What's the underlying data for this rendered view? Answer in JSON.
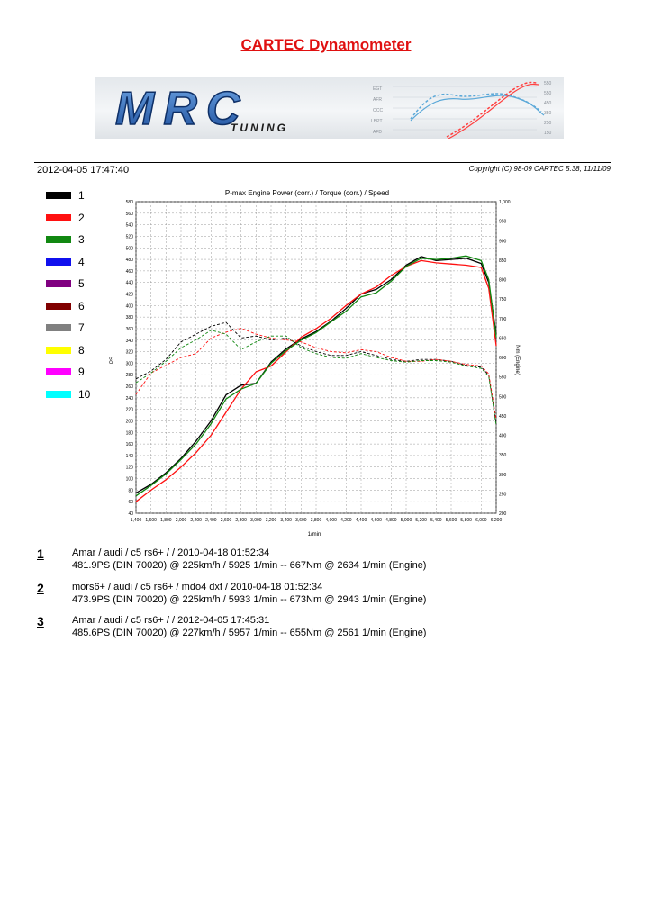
{
  "page_title": "CARTEC Dynamometer",
  "banner": {
    "logo_text": "MRC",
    "logo_subtext": "TUNING",
    "mini_labels": [
      "EGT",
      "AFR",
      "OCC",
      "LBPT",
      "AFD"
    ],
    "mini_right_labels": [
      "550",
      "550",
      "450",
      "350",
      "250",
      "150"
    ]
  },
  "header": {
    "date": "2012-04-05 17:47:40",
    "copyright": "Copyright (C) 98-09 CARTEC 5.38, 11/11/09"
  },
  "legend": [
    {
      "num": "1",
      "color": "#000000"
    },
    {
      "num": "2",
      "color": "#ff1010"
    },
    {
      "num": "3",
      "color": "#118811"
    },
    {
      "num": "4",
      "color": "#1010ee"
    },
    {
      "num": "5",
      "color": "#800080"
    },
    {
      "num": "6",
      "color": "#800000"
    },
    {
      "num": "7",
      "color": "#808080"
    },
    {
      "num": "8",
      "color": "#ffff00"
    },
    {
      "num": "9",
      "color": "#ff00ff"
    },
    {
      "num": "10",
      "color": "#00ffff"
    }
  ],
  "chart_data": {
    "type": "line",
    "title": "P-max Engine Power (corr.) / Torque (corr.) / Speed",
    "xlabel": "1/min",
    "ylabel_left": "PS",
    "ylabel_right": "Nm (Engine)",
    "xlim": [
      1400,
      6200
    ],
    "ylim_left": [
      40,
      580
    ],
    "ylim_right": [
      200,
      1000
    ],
    "x_ticks": [
      "1,400",
      "1,600",
      "1,800",
      "2,000",
      "2,200",
      "2,400",
      "2,600",
      "2,800",
      "3,000",
      "3,200",
      "3,400",
      "3,600",
      "3,800",
      "4,000",
      "4,200",
      "4,400",
      "4,600",
      "4,800",
      "5,000",
      "5,200",
      "5,400",
      "5,600",
      "5,800",
      "6,000",
      "6,200"
    ],
    "y_left_ticks": [
      "40",
      "60",
      "80",
      "100",
      "120",
      "140",
      "160",
      "180",
      "200",
      "220",
      "240",
      "260",
      "280",
      "300",
      "320",
      "340",
      "360",
      "380",
      "400",
      "420",
      "440",
      "460",
      "480",
      "500",
      "520",
      "540",
      "560",
      "580"
    ],
    "y_right_ticks": [
      "200",
      "250",
      "300",
      "350",
      "400",
      "450",
      "500",
      "550",
      "600",
      "650",
      "700",
      "750",
      "800",
      "850",
      "900",
      "950",
      "1,000"
    ],
    "grid": true,
    "series": [
      {
        "name": "1",
        "quantity": "power",
        "color": "#000000",
        "x": [
          1400,
          1600,
          1800,
          2000,
          2200,
          2400,
          2600,
          2800,
          3000,
          3200,
          3400,
          3600,
          3800,
          4000,
          4200,
          4400,
          4600,
          4800,
          5000,
          5200,
          5400,
          5600,
          5800,
          6000,
          6100,
          6200
        ],
        "y": [
          75,
          90,
          110,
          135,
          165,
          200,
          245,
          262,
          265,
          302,
          325,
          342,
          355,
          373,
          395,
          420,
          428,
          445,
          470,
          485,
          478,
          480,
          482,
          473,
          440,
          350
        ]
      },
      {
        "name": "2",
        "quantity": "power",
        "color": "#ff1010",
        "x": [
          1400,
          1600,
          1800,
          2000,
          2200,
          2400,
          2600,
          2800,
          3000,
          3200,
          3400,
          3600,
          3800,
          4000,
          4200,
          4400,
          4600,
          4800,
          5000,
          5200,
          5400,
          5600,
          5800,
          6000,
          6100,
          6200
        ],
        "y": [
          60,
          80,
          98,
          120,
          145,
          175,
          215,
          255,
          285,
          295,
          320,
          345,
          360,
          378,
          400,
          420,
          432,
          452,
          468,
          478,
          474,
          472,
          470,
          466,
          430,
          330
        ]
      },
      {
        "name": "3",
        "quantity": "power",
        "color": "#118811",
        "x": [
          1400,
          1600,
          1800,
          2000,
          2200,
          2400,
          2600,
          2800,
          3000,
          3200,
          3400,
          3600,
          3800,
          4000,
          4200,
          4400,
          4600,
          4800,
          5000,
          5200,
          5400,
          5600,
          5800,
          6000,
          6100,
          6200
        ],
        "y": [
          70,
          88,
          108,
          133,
          160,
          195,
          238,
          255,
          265,
          300,
          322,
          340,
          353,
          372,
          390,
          415,
          422,
          442,
          468,
          482,
          480,
          482,
          486,
          478,
          445,
          345
        ]
      },
      {
        "name": "1",
        "quantity": "torque",
        "color": "#000000",
        "x": [
          1400,
          1600,
          1800,
          2000,
          2200,
          2400,
          2600,
          2800,
          3000,
          3200,
          3400,
          3600,
          3800,
          4000,
          4200,
          4400,
          4600,
          4800,
          5000,
          5200,
          5400,
          5600,
          5800,
          6000,
          6100,
          6200
        ],
        "y": [
          545,
          565,
          595,
          640,
          660,
          680,
          690,
          650,
          655,
          645,
          650,
          630,
          615,
          605,
          605,
          615,
          605,
          595,
          590,
          595,
          595,
          590,
          580,
          575,
          555,
          430
        ]
      },
      {
        "name": "2",
        "quantity": "torque",
        "color": "#ff1010",
        "x": [
          1400,
          1600,
          1800,
          2000,
          2200,
          2400,
          2600,
          2800,
          3000,
          3200,
          3400,
          3600,
          3800,
          4000,
          4200,
          4400,
          4600,
          4800,
          5000,
          5200,
          5400,
          5600,
          5800,
          6000,
          6100,
          6200
        ],
        "y": [
          505,
          560,
          580,
          600,
          610,
          650,
          665,
          675,
          660,
          650,
          645,
          640,
          625,
          615,
          612,
          620,
          615,
          600,
          590,
          590,
          595,
          590,
          582,
          578,
          558,
          440
        ]
      },
      {
        "name": "3",
        "quantity": "torque",
        "color": "#118811",
        "x": [
          1400,
          1600,
          1800,
          2000,
          2200,
          2400,
          2600,
          2800,
          3000,
          3200,
          3400,
          3600,
          3800,
          4000,
          4200,
          4400,
          4600,
          4800,
          5000,
          5200,
          5400,
          5600,
          5800,
          6000,
          6100,
          6200
        ],
        "y": [
          535,
          560,
          590,
          625,
          645,
          670,
          660,
          620,
          640,
          655,
          655,
          625,
          610,
          600,
          598,
          610,
          600,
          592,
          588,
          592,
          592,
          588,
          578,
          572,
          552,
          425
        ]
      }
    ]
  },
  "runs": [
    {
      "num": "1",
      "line1": "Amar / audi / c5 rs6+ /  / 2010-04-18 01:52:34",
      "line2": "481.9PS (DIN 70020) @ 225km/h / 5925 1/min -- 667Nm @ 2634 1/min (Engine)"
    },
    {
      "num": "2",
      "line1": "mors6+ / audi / c5 rs6+ / mdo4 dxf / 2010-04-18 01:52:34",
      "line2": "473.9PS (DIN 70020) @ 225km/h / 5933 1/min -- 673Nm @ 2943 1/min (Engine)"
    },
    {
      "num": "3",
      "line1": "Amar / audi / c5 rs6+ /  / 2012-04-05 17:45:31",
      "line2": "485.6PS (DIN 70020) @ 227km/h / 5957 1/min -- 655Nm @ 2561 1/min (Engine)"
    }
  ]
}
